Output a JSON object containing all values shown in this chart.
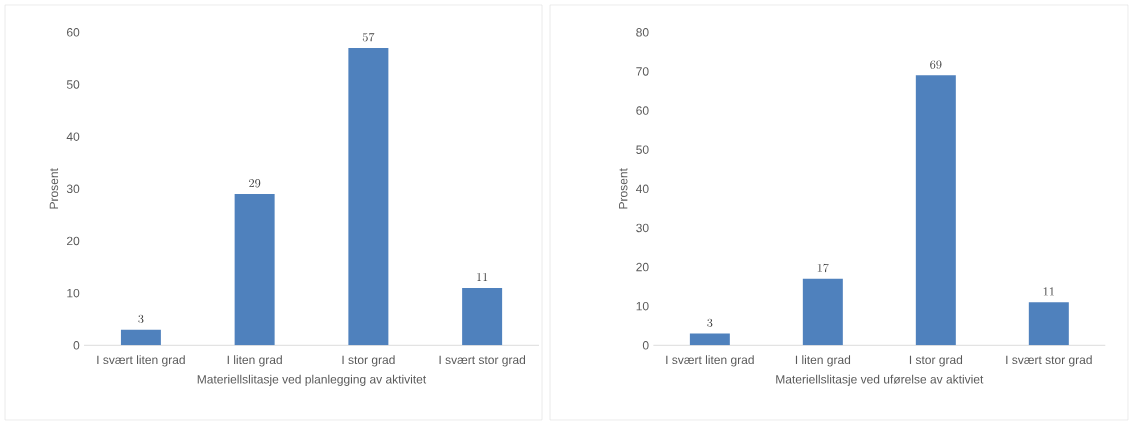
{
  "chart_data": [
    {
      "type": "bar",
      "categories": [
        "I svært liten grad",
        "I liten grad",
        "I stor grad",
        "I svært stor grad"
      ],
      "values": [
        3,
        29,
        57,
        11
      ],
      "color": "#4f81bd",
      "ylim": [
        0,
        60
      ],
      "yticks": [
        0,
        10,
        20,
        30,
        40,
        50,
        60
      ],
      "xlabel": "Materiellslitasje ved planlegging av aktivitet",
      "ylabel": "Prosent",
      "data_labels": true
    },
    {
      "type": "bar",
      "categories": [
        "I svært liten grad",
        "I liten grad",
        "I stor grad",
        "I svært stor grad"
      ],
      "values": [
        3,
        17,
        69,
        11
      ],
      "color": "#4f81bd",
      "ylim": [
        0,
        80
      ],
      "yticks": [
        0,
        10,
        20,
        30,
        40,
        50,
        60,
        70,
        80
      ],
      "xlabel": "Materiellslitasje ved uførelse av aktiviet",
      "ylabel": "Prosent",
      "data_labels": true
    }
  ]
}
